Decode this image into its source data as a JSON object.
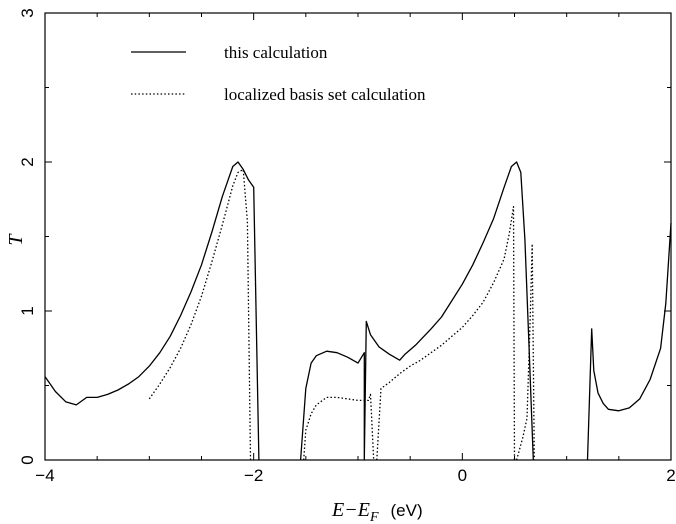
{
  "chart_data": {
    "type": "line",
    "xlabel": "E−E",
    "xlabel_sub": "F",
    "xlabel_unit": "(eV)",
    "ylabel": "T",
    "xlim": [
      -4,
      2
    ],
    "ylim": [
      0,
      3
    ],
    "x_ticks": [
      -4,
      -2,
      0,
      2
    ],
    "y_ticks": [
      0,
      1,
      2,
      3
    ],
    "x_tick_labels": [
      "−4",
      "−2",
      "0",
      "2"
    ],
    "y_tick_labels": [
      "0",
      "1",
      "2",
      "3"
    ],
    "grid": false,
    "legend_position": "top-left",
    "series": [
      {
        "name": "this calculation",
        "style": "solid",
        "color": "#000000",
        "segments": [
          [
            [
              -4.0,
              0.56
            ],
            [
              -3.9,
              0.46
            ],
            [
              -3.8,
              0.39
            ],
            [
              -3.7,
              0.37
            ],
            [
              -3.6,
              0.42
            ],
            [
              -3.5,
              0.42
            ],
            [
              -3.4,
              0.44
            ],
            [
              -3.3,
              0.47
            ],
            [
              -3.2,
              0.51
            ],
            [
              -3.1,
              0.56
            ],
            [
              -3.0,
              0.63
            ],
            [
              -2.9,
              0.72
            ],
            [
              -2.8,
              0.83
            ],
            [
              -2.7,
              0.97
            ],
            [
              -2.6,
              1.13
            ],
            [
              -2.5,
              1.31
            ],
            [
              -2.4,
              1.53
            ],
            [
              -2.3,
              1.77
            ],
            [
              -2.2,
              1.97
            ],
            [
              -2.15,
              2.0
            ],
            [
              -2.1,
              1.95
            ],
            [
              -2.05,
              1.88
            ],
            [
              -2.0,
              1.83
            ],
            [
              -1.95,
              0.0
            ]
          ],
          [
            [
              -1.55,
              0.0
            ],
            [
              -1.5,
              0.48
            ],
            [
              -1.45,
              0.65
            ],
            [
              -1.4,
              0.7
            ],
            [
              -1.3,
              0.73
            ],
            [
              -1.2,
              0.72
            ],
            [
              -1.1,
              0.69
            ],
            [
              -1.0,
              0.65
            ],
            [
              -0.94,
              0.72
            ],
            [
              -0.94,
              0.0
            ],
            [
              -0.92,
              0.93
            ],
            [
              -0.88,
              0.84
            ],
            [
              -0.8,
              0.76
            ],
            [
              -0.7,
              0.71
            ],
            [
              -0.6,
              0.67
            ],
            [
              -0.55,
              0.71
            ],
            [
              -0.45,
              0.77
            ],
            [
              -0.3,
              0.88
            ],
            [
              -0.2,
              0.96
            ],
            [
              -0.1,
              1.07
            ],
            [
              0.0,
              1.18
            ],
            [
              0.1,
              1.31
            ],
            [
              0.2,
              1.46
            ],
            [
              0.3,
              1.62
            ],
            [
              0.4,
              1.83
            ],
            [
              0.47,
              1.97
            ],
            [
              0.52,
              2.0
            ],
            [
              0.56,
              1.93
            ],
            [
              0.6,
              1.48
            ],
            [
              0.64,
              0.75
            ],
            [
              0.68,
              0.0
            ]
          ],
          [
            [
              1.2,
              0.0
            ],
            [
              1.24,
              0.88
            ],
            [
              1.26,
              0.6
            ],
            [
              1.3,
              0.45
            ],
            [
              1.35,
              0.38
            ],
            [
              1.4,
              0.34
            ],
            [
              1.5,
              0.33
            ],
            [
              1.6,
              0.35
            ],
            [
              1.7,
              0.41
            ],
            [
              1.8,
              0.54
            ],
            [
              1.9,
              0.75
            ],
            [
              1.95,
              1.05
            ],
            [
              2.0,
              1.59
            ]
          ]
        ]
      },
      {
        "name": "localized basis set calculation",
        "style": "dotted",
        "color": "#000000",
        "segments": [
          [
            [
              -3.0,
              0.41
            ],
            [
              -2.9,
              0.51
            ],
            [
              -2.8,
              0.62
            ],
            [
              -2.7,
              0.75
            ],
            [
              -2.6,
              0.91
            ],
            [
              -2.5,
              1.1
            ],
            [
              -2.4,
              1.33
            ],
            [
              -2.3,
              1.58
            ],
            [
              -2.2,
              1.84
            ],
            [
              -2.15,
              1.93
            ],
            [
              -2.1,
              1.95
            ],
            [
              -2.06,
              1.6
            ],
            [
              -2.03,
              0.0
            ]
          ],
          [
            [
              -1.52,
              0.0
            ],
            [
              -1.5,
              0.2
            ],
            [
              -1.45,
              0.31
            ],
            [
              -1.4,
              0.37
            ],
            [
              -1.3,
              0.42
            ],
            [
              -1.2,
              0.42
            ],
            [
              -1.1,
              0.41
            ],
            [
              -1.0,
              0.4
            ],
            [
              -0.9,
              0.4
            ],
            [
              -0.88,
              0.44
            ],
            [
              -0.85,
              0.0
            ]
          ],
          [
            [
              -0.82,
              0.0
            ],
            [
              -0.78,
              0.48
            ],
            [
              -0.7,
              0.52
            ],
            [
              -0.6,
              0.58
            ],
            [
              -0.5,
              0.63
            ],
            [
              -0.4,
              0.67
            ],
            [
              -0.3,
              0.72
            ],
            [
              -0.2,
              0.77
            ],
            [
              -0.1,
              0.83
            ],
            [
              0.0,
              0.89
            ],
            [
              0.1,
              0.97
            ],
            [
              0.2,
              1.06
            ],
            [
              0.3,
              1.19
            ],
            [
              0.4,
              1.35
            ],
            [
              0.45,
              1.52
            ],
            [
              0.49,
              1.7
            ],
            [
              0.5,
              0.0
            ]
          ],
          [
            [
              0.52,
              0.0
            ],
            [
              0.58,
              0.15
            ],
            [
              0.62,
              0.28
            ],
            [
              0.65,
              0.95
            ],
            [
              0.67,
              1.45
            ],
            [
              0.69,
              0.0
            ]
          ]
        ]
      }
    ]
  }
}
